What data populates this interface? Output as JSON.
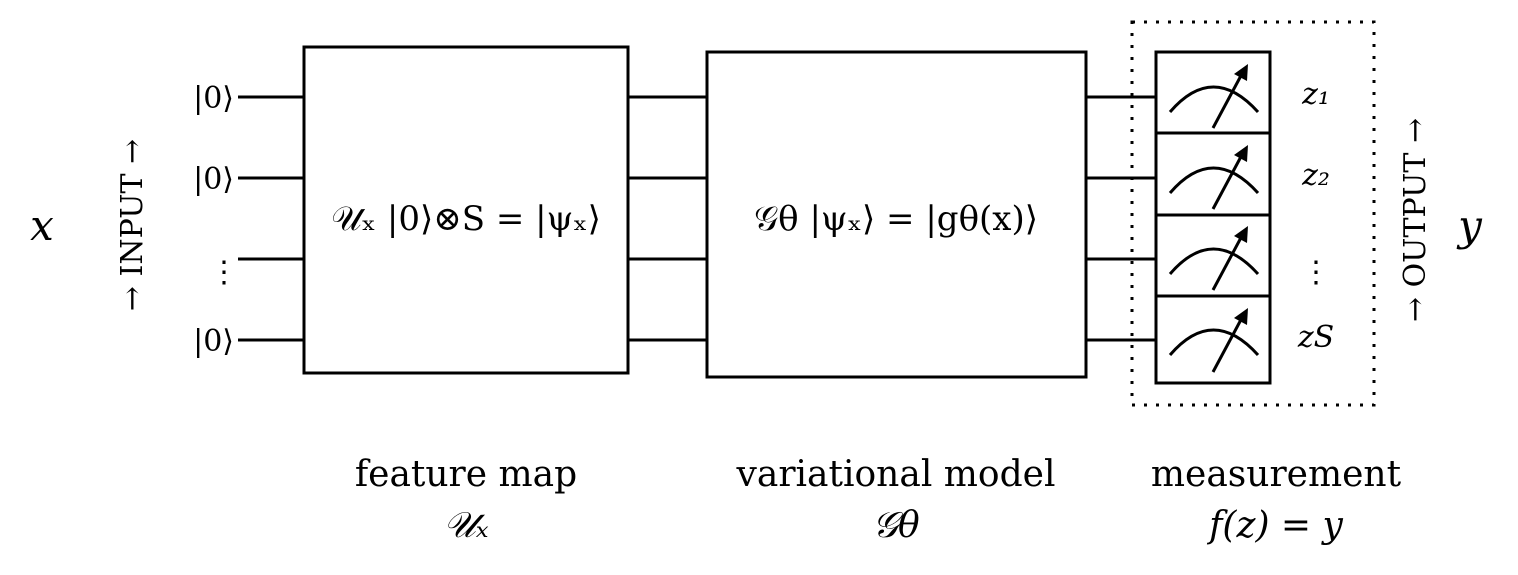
{
  "input_variable": "x",
  "output_variable": "y",
  "input_label": "→ INPUT →",
  "output_label": "→ OUTPUT →",
  "qubit_labels": [
    "|0⟩",
    "|0⟩",
    "⋮",
    "|0⟩"
  ],
  "feature_map_box": "𝒰ₓ |0⟩⊗S = |ψₓ⟩",
  "variational_box": "𝒢θ |ψₓ⟩ = |gθ(x)⟩",
  "measurement_outputs": [
    "z₁",
    "z₂",
    "⋮",
    "zS"
  ],
  "captions": {
    "feature_map_title": "feature map",
    "feature_map_symbol": "𝒰ₓ",
    "variational_title": "variational model",
    "variational_symbol": "𝒢θ",
    "measurement_title": "measurement",
    "measurement_formula": "f(z) = y"
  },
  "icons": [
    "meter-icon",
    "meter-icon",
    "meter-icon",
    "meter-icon"
  ],
  "colors": {
    "line": "#000000",
    "background": "#ffffff"
  }
}
